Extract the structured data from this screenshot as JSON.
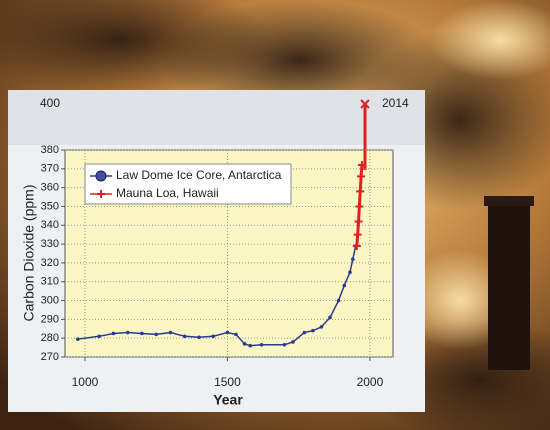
{
  "chart_data": {
    "type": "line",
    "x_label": "Year",
    "y_label": "Carbon Dioxide (ppm)",
    "annotations": [
      "400",
      "2014"
    ],
    "series": [
      {
        "name": "Law Dome Ice Core, Antarctica",
        "color": "#2b3a8f",
        "marker": "circle",
        "x": [
          975,
          1050,
          1100,
          1150,
          1200,
          1250,
          1300,
          1350,
          1400,
          1450,
          1500,
          1530,
          1560,
          1580,
          1620,
          1700,
          1730,
          1770,
          1800,
          1830,
          1860,
          1890,
          1910,
          1930,
          1940,
          1950
        ],
        "values": [
          279.5,
          281,
          282.5,
          283,
          282.5,
          282,
          283,
          281,
          280.5,
          281,
          283,
          282,
          277,
          276,
          276.5,
          276.5,
          278,
          283,
          284,
          286,
          291,
          300,
          308,
          315,
          322,
          329
        ]
      },
      {
        "name": "Mauna Loa, Hawaii",
        "color": "#e02020",
        "marker": "plus",
        "x": [
          1954,
          1957,
          1960,
          1963,
          1966,
          1969,
          1972
        ],
        "values": [
          329,
          335,
          342,
          350,
          358,
          366,
          372
        ]
      }
    ],
    "xlim": [
      930,
      2081
    ],
    "xticks": [
      1000,
      1500,
      2000
    ],
    "ylim": [
      270,
      380
    ],
    "yticks": [
      270,
      280,
      290,
      300,
      310,
      320,
      330,
      340,
      350,
      360,
      370,
      380
    ],
    "grid": true,
    "legend": "upper left"
  }
}
